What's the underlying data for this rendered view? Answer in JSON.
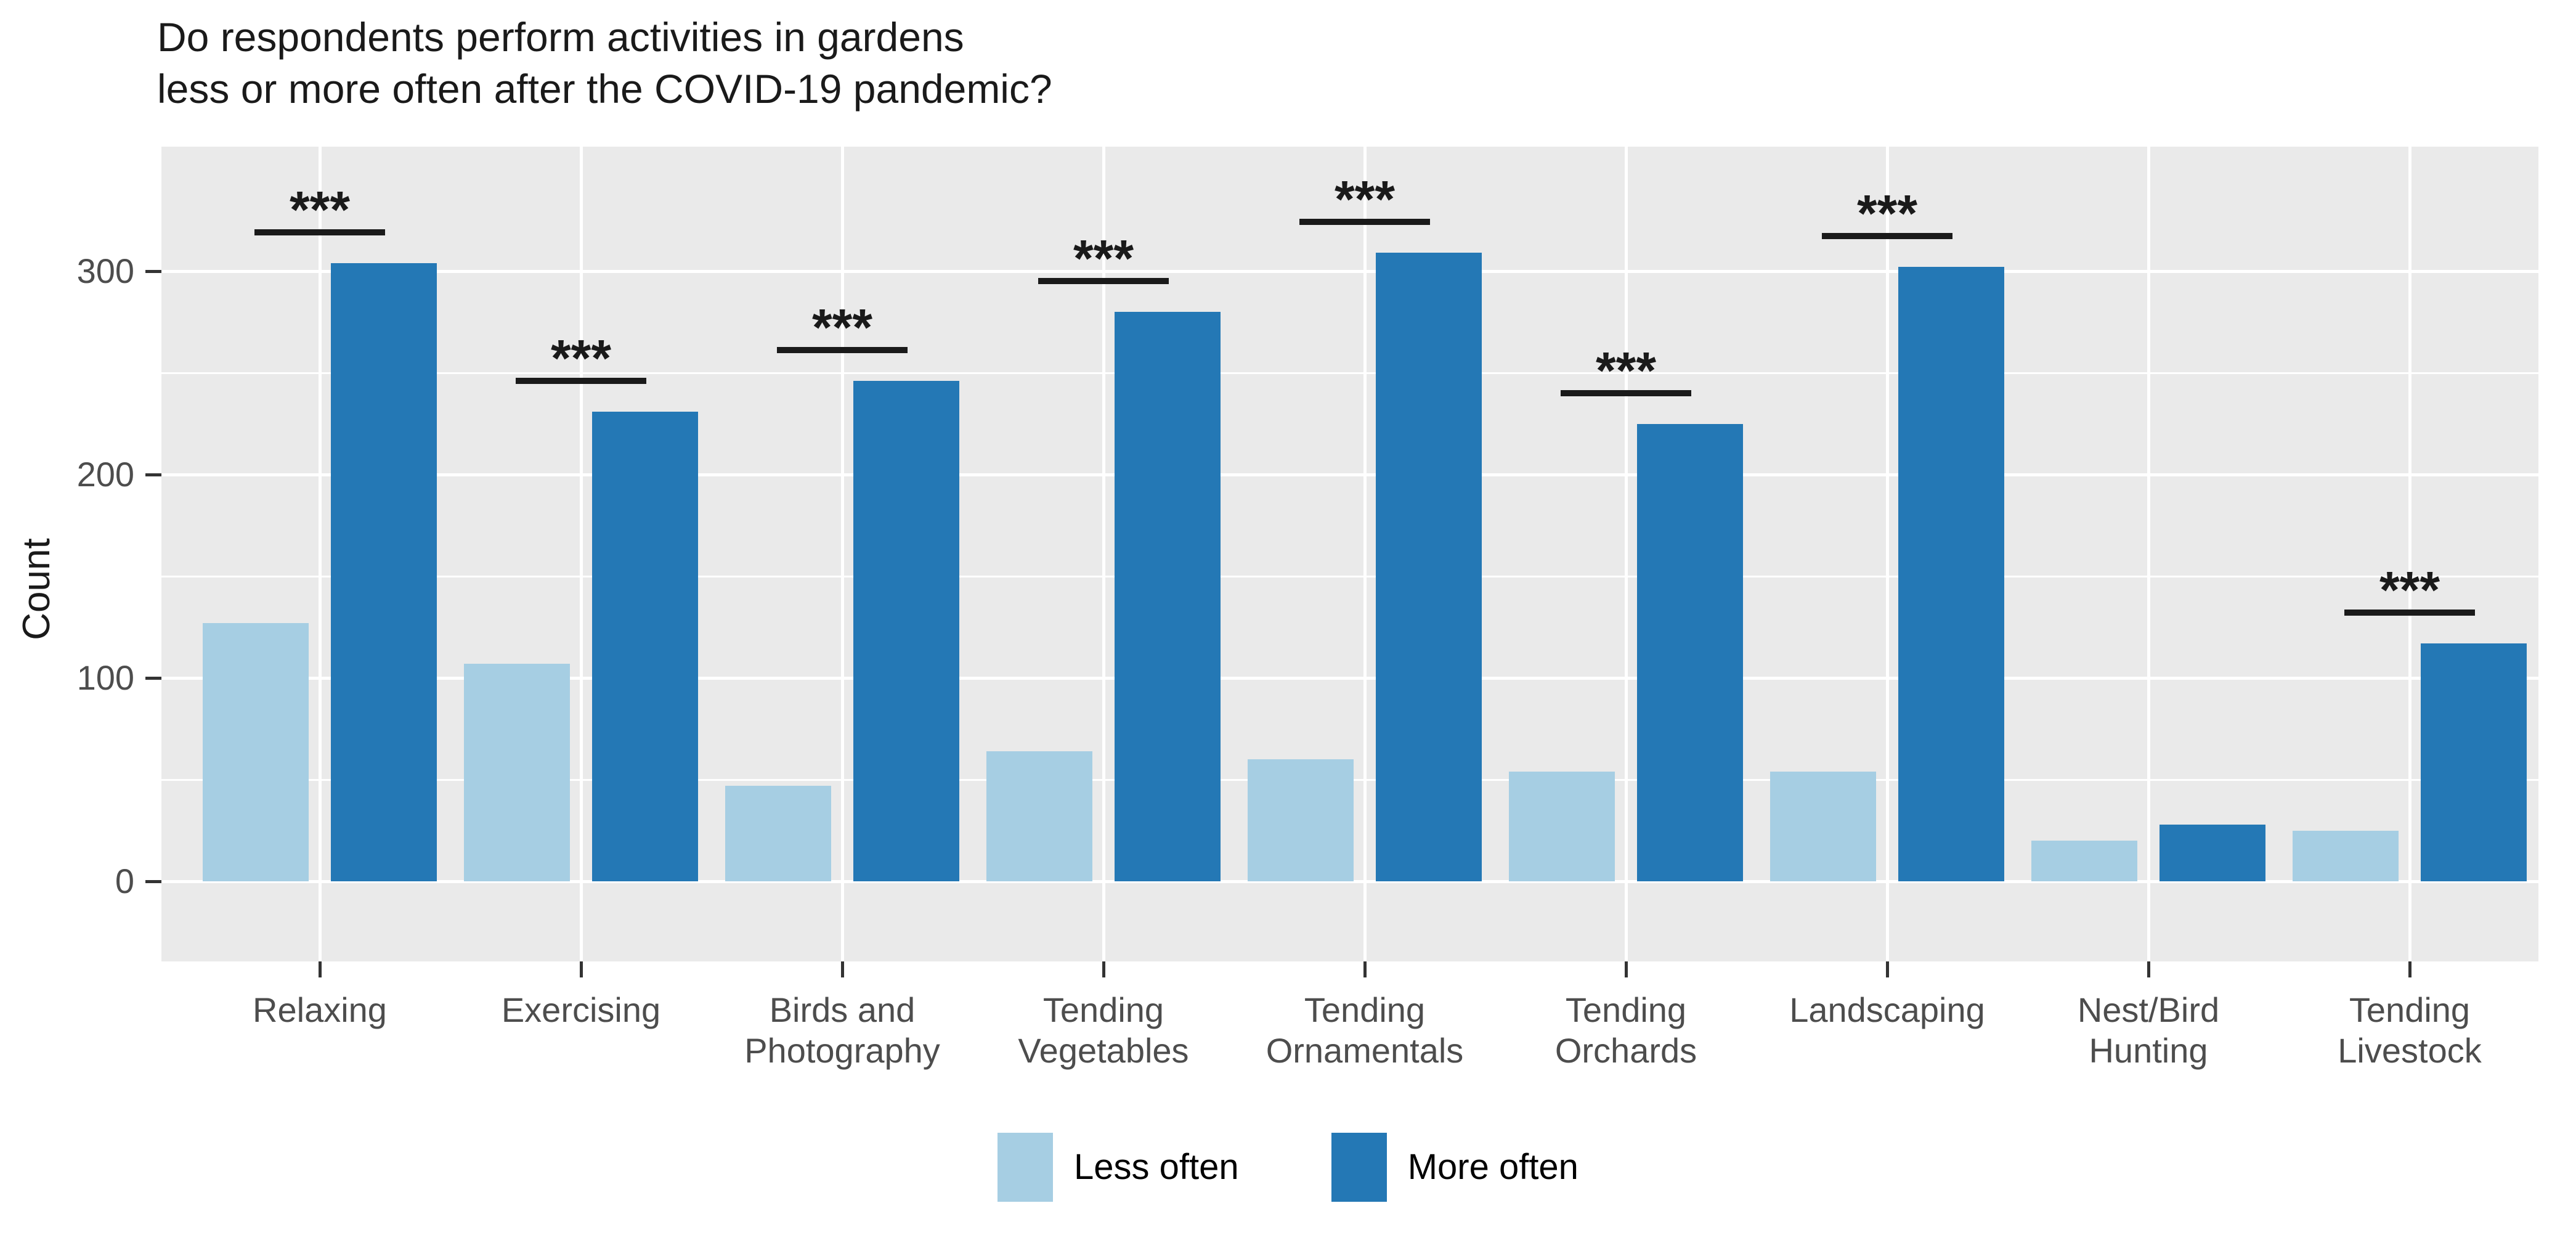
{
  "title": {
    "line1": "Do respondents perform activities in gardens",
    "line2": "less or more often after the COVID-19 pandemic?"
  },
  "colors": {
    "less_often": "#a6cee3",
    "more_often": "#2478b5",
    "panel_background": "#eaeaea",
    "gridline": "#ffffff",
    "tick_text": "#4d4d4d",
    "title_text": "#1a1a1a",
    "significance": "#1a1a1a"
  },
  "legend": {
    "items": [
      {
        "id": "less-often",
        "label": "Less often",
        "color": "#a6cee3"
      },
      {
        "id": "more-often",
        "label": "More often",
        "color": "#2478b5"
      }
    ]
  },
  "chart_data": {
    "type": "bar",
    "title": "Do respondents perform activities in gardens less or more often after the COVID-19 pandemic?",
    "xlabel": "",
    "ylabel": "Count",
    "ylim": [
      0,
      360
    ],
    "yticks": [
      0,
      100,
      200,
      300
    ],
    "grid": "on",
    "legend_position": "bottom",
    "categories": [
      {
        "id": "relaxing",
        "label": "Relaxing",
        "lines": [
          "Relaxing"
        ]
      },
      {
        "id": "exercising",
        "label": "Exercising",
        "lines": [
          "Exercising"
        ]
      },
      {
        "id": "birds-and-photography",
        "label": "Birds and Photography",
        "lines": [
          "Birds and",
          "Photography"
        ]
      },
      {
        "id": "tending-vegetables",
        "label": "Tending Vegetables",
        "lines": [
          "Tending",
          "Vegetables"
        ]
      },
      {
        "id": "tending-ornamentals",
        "label": "Tending Ornamentals",
        "lines": [
          "Tending",
          "Ornamentals"
        ]
      },
      {
        "id": "tending-orchards",
        "label": "Tending Orchards",
        "lines": [
          "Tending",
          "Orchards"
        ]
      },
      {
        "id": "landscaping",
        "label": "Landscaping",
        "lines": [
          "Landscaping"
        ]
      },
      {
        "id": "nest-bird-hunting",
        "label": "Nest/Bird Hunting",
        "lines": [
          "Nest/Bird",
          "Hunting"
        ]
      },
      {
        "id": "tending-livestock",
        "label": "Tending Livestock",
        "lines": [
          "Tending",
          "Livestock"
        ]
      }
    ],
    "series": [
      {
        "name": "Less often",
        "color": "#a6cee3",
        "values": [
          127,
          107,
          47,
          64,
          60,
          54,
          54,
          20,
          25
        ]
      },
      {
        "name": "More often",
        "color": "#2478b5",
        "values": [
          304,
          231,
          246,
          280,
          309,
          225,
          302,
          28,
          117
        ]
      }
    ],
    "significance": [
      "***",
      "***",
      "***",
      "***",
      "***",
      "***",
      "***",
      null,
      "***"
    ]
  }
}
